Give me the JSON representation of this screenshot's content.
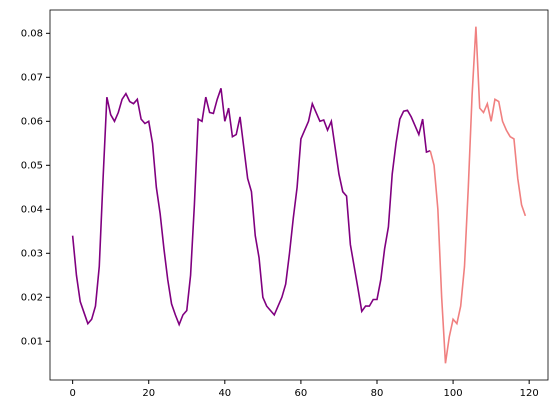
{
  "chart_data": {
    "type": "line",
    "x": [
      0,
      1,
      2,
      3,
      4,
      5,
      6,
      7,
      8,
      9,
      10,
      11,
      12,
      13,
      14,
      15,
      16,
      17,
      18,
      19,
      20,
      21,
      22,
      23,
      24,
      25,
      26,
      27,
      28,
      29,
      30,
      31,
      32,
      33,
      34,
      35,
      36,
      37,
      38,
      39,
      40,
      41,
      42,
      43,
      44,
      45,
      46,
      47,
      48,
      49,
      50,
      51,
      52,
      53,
      54,
      55,
      56,
      57,
      58,
      59,
      60,
      61,
      62,
      63,
      64,
      65,
      66,
      67,
      68,
      69,
      70,
      71,
      72,
      73,
      74,
      75,
      76,
      77,
      78,
      79,
      80,
      81,
      82,
      83,
      84,
      85,
      86,
      87,
      88,
      89,
      90,
      91,
      92,
      93,
      94,
      95,
      96,
      97,
      98,
      99,
      100,
      101,
      102,
      103,
      104,
      105,
      106,
      107,
      108,
      109,
      110,
      111,
      112,
      113,
      114,
      115,
      116,
      117,
      118,
      119
    ],
    "series": [
      {
        "color": "#800080",
        "values": [
          0.034,
          0.025,
          0.019,
          0.0165,
          0.014,
          0.015,
          0.018,
          0.027,
          0.047,
          0.0655,
          0.0615,
          0.06,
          0.062,
          0.065,
          0.0663,
          0.0645,
          0.064,
          0.065,
          0.0605,
          0.0595,
          0.06,
          0.055,
          0.045,
          0.039,
          0.031,
          0.024,
          0.0185,
          0.016,
          0.0138,
          0.016,
          0.017,
          0.025,
          0.041,
          0.0605,
          0.06,
          0.0655,
          0.062,
          0.0618,
          0.065,
          0.0675,
          0.06,
          0.063,
          0.0565,
          0.057,
          0.061,
          0.054,
          0.047,
          0.044,
          0.034,
          0.029,
          0.02,
          0.018,
          0.017,
          0.016,
          0.018,
          0.02,
          0.023,
          0.03,
          0.038,
          0.045,
          0.056,
          0.058,
          0.06,
          0.064,
          0.062,
          0.06,
          0.0603,
          0.058,
          0.06,
          0.054,
          0.048,
          0.044,
          0.043,
          0.032,
          0.027,
          0.022,
          0.0168,
          0.018,
          0.018,
          0.0195,
          0.0195,
          0.024,
          0.031,
          0.036,
          0.048,
          0.055,
          0.0605,
          0.0623,
          0.0625,
          0.061,
          0.059,
          0.057,
          0.0605,
          0.053,
          0.0533,
          null,
          null,
          null,
          null,
          null,
          null,
          null,
          null,
          null,
          null,
          null,
          null,
          null,
          null,
          null,
          null,
          null,
          null,
          null,
          null,
          null,
          null,
          null,
          null,
          null
        ]
      },
      {
        "color": "#f08080",
        "values": [
          null,
          null,
          null,
          null,
          null,
          null,
          null,
          null,
          null,
          null,
          null,
          null,
          null,
          null,
          null,
          null,
          null,
          null,
          null,
          null,
          null,
          null,
          null,
          null,
          null,
          null,
          null,
          null,
          null,
          null,
          null,
          null,
          null,
          null,
          null,
          null,
          null,
          null,
          null,
          null,
          null,
          null,
          null,
          null,
          null,
          null,
          null,
          null,
          null,
          null,
          null,
          null,
          null,
          null,
          null,
          null,
          null,
          null,
          null,
          null,
          null,
          null,
          null,
          null,
          null,
          null,
          null,
          null,
          null,
          null,
          null,
          null,
          null,
          null,
          null,
          null,
          null,
          null,
          null,
          null,
          null,
          null,
          null,
          null,
          null,
          null,
          null,
          null,
          null,
          null,
          null,
          null,
          null,
          null,
          0.0533,
          0.05,
          0.04,
          0.02,
          0.005,
          0.011,
          0.015,
          0.014,
          0.018,
          0.027,
          0.045,
          0.066,
          0.0815,
          0.063,
          0.062,
          0.064,
          0.06,
          0.065,
          0.0645,
          0.06,
          0.058,
          0.0565,
          0.056,
          0.047,
          0.041,
          0.0385
        ]
      }
    ],
    "xlim": [
      -5.95,
      124.95
    ],
    "xticks": [
      0,
      20,
      40,
      60,
      80,
      100,
      120
    ],
    "ylim": [
      0.0012,
      0.0853
    ],
    "yticks": [
      0.01,
      0.02,
      0.03,
      0.04,
      0.05,
      0.06,
      0.07,
      0.08
    ]
  }
}
